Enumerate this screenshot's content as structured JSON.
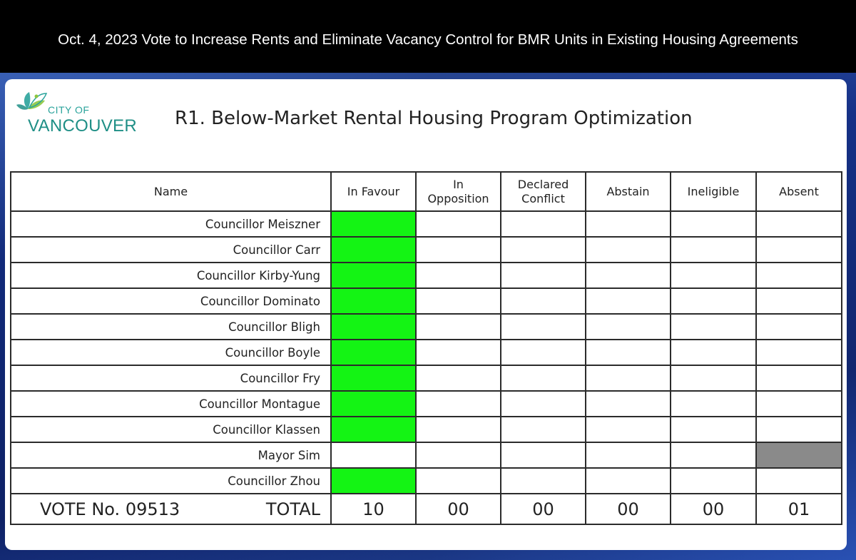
{
  "caption": "Oct. 4, 2023 Vote to Increase Rents and Eliminate Vacancy Control for BMR Units in Existing Housing Agreements",
  "logo": {
    "line1": "CITY OF",
    "line2": "VANCOUVER"
  },
  "title": "R1. Below-Market Rental Housing Program Optimization",
  "colors": {
    "in_favour": "#14f414",
    "absent": "#8a8a8a",
    "brand": "#1f8f86"
  },
  "columns": {
    "name": "Name",
    "in_favour": "In Favour",
    "in_opposition_l1": "In",
    "in_opposition_l2": "Opposition",
    "declared_conflict_l1": "Declared",
    "declared_conflict_l2": "Conflict",
    "abstain": "Abstain",
    "ineligible": "Ineligible",
    "absent": "Absent"
  },
  "rows": [
    {
      "name": "Councillor Meiszner",
      "vote": "in_favour"
    },
    {
      "name": "Councillor Carr",
      "vote": "in_favour"
    },
    {
      "name": "Councillor Kirby-Yung",
      "vote": "in_favour"
    },
    {
      "name": "Councillor Dominato",
      "vote": "in_favour"
    },
    {
      "name": "Councillor Bligh",
      "vote": "in_favour"
    },
    {
      "name": "Councillor Boyle",
      "vote": "in_favour"
    },
    {
      "name": "Councillor Fry",
      "vote": "in_favour"
    },
    {
      "name": "Councillor Montague",
      "vote": "in_favour"
    },
    {
      "name": "Councillor Klassen",
      "vote": "in_favour"
    },
    {
      "name": "Mayor Sim",
      "vote": "absent"
    },
    {
      "name": "Councillor Zhou",
      "vote": "in_favour"
    }
  ],
  "totals": {
    "vote_label": "VOTE No. 09513",
    "total_label": "TOTAL",
    "in_favour": "10",
    "in_opposition": "00",
    "declared_conflict": "00",
    "abstain": "00",
    "ineligible": "00",
    "absent": "01"
  }
}
